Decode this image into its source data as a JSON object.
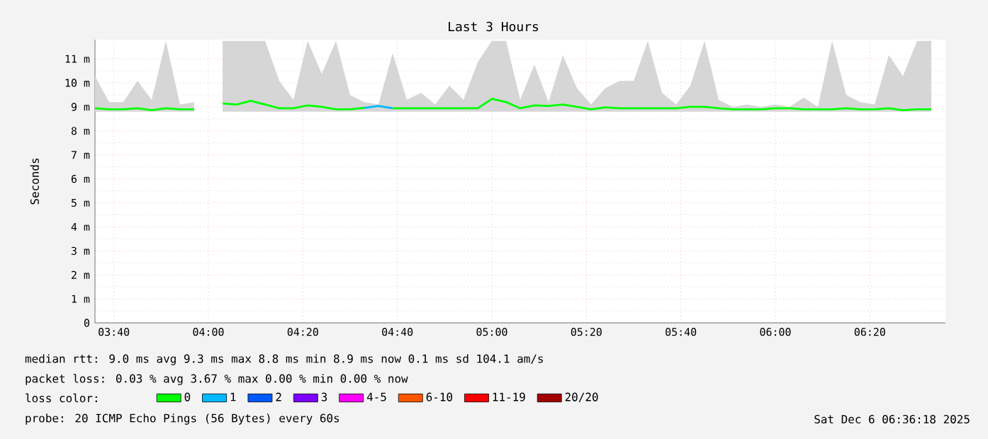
{
  "chart_data": {
    "type": "line",
    "title": "Last 3 Hours",
    "ylabel": "Seconds",
    "x": [
      3.6,
      3.65,
      3.7,
      3.75,
      3.8,
      3.85,
      3.9,
      3.95,
      4.0,
      4.05,
      4.1,
      4.15,
      4.2,
      4.25,
      4.3,
      4.35,
      4.4,
      4.45,
      4.5,
      4.55,
      4.6,
      4.65,
      4.7,
      4.75,
      4.8,
      4.85,
      4.9,
      4.95,
      5.0,
      5.05,
      5.1,
      5.15,
      5.2,
      5.25,
      5.3,
      5.35,
      5.4,
      5.45,
      5.5,
      5.55,
      5.6,
      5.65,
      5.7,
      5.75,
      5.8,
      5.85,
      5.9,
      5.95,
      6.0,
      6.05,
      6.1,
      6.15,
      6.2,
      6.25,
      6.3,
      6.35,
      6.4,
      6.45,
      6.5,
      6.55
    ],
    "series": [
      {
        "name": "0",
        "color": "#00ff00",
        "values": [
          8.94,
          8.9,
          8.9,
          8.94,
          8.86,
          8.94,
          8.9,
          8.9,
          null,
          9.14,
          9.1,
          9.25,
          9.1,
          8.94,
          8.94,
          9.06,
          9.0,
          8.9,
          8.9,
          8.96,
          null,
          8.94,
          8.94,
          8.94,
          8.94,
          8.94,
          8.94,
          8.94,
          9.33,
          9.2,
          8.94,
          9.06,
          9.04,
          9.1,
          9.0,
          8.9,
          8.98,
          8.94,
          8.94,
          8.94,
          8.94,
          8.94,
          9.0,
          9.0,
          8.94,
          8.9,
          8.9,
          8.9,
          8.94,
          8.94,
          8.9,
          8.9,
          8.9,
          8.94,
          8.9,
          8.9,
          8.94,
          8.86,
          8.9,
          8.9
        ],
        "lower": [
          8.8,
          8.8,
          8.8,
          8.8,
          8.8,
          8.8,
          8.8,
          8.8,
          null,
          8.8,
          8.8,
          8.8,
          8.8,
          8.8,
          8.8,
          8.8,
          8.8,
          8.8,
          8.8,
          8.8,
          8.8,
          8.8,
          8.8,
          8.8,
          8.8,
          8.8,
          8.8,
          8.8,
          8.8,
          8.8,
          8.8,
          8.8,
          8.8,
          8.8,
          8.8,
          8.8,
          8.8,
          8.8,
          8.8,
          8.8,
          8.8,
          8.8,
          8.8,
          8.8,
          8.8,
          8.8,
          8.8,
          8.8,
          8.8,
          8.8,
          8.8,
          8.8,
          8.8,
          8.8,
          8.8,
          8.8,
          8.8,
          8.8,
          8.8,
          8.8
        ],
        "upper": [
          10.28,
          9.2,
          9.2,
          10.08,
          9.29,
          11.75,
          9.1,
          9.2,
          null,
          11.75,
          11.75,
          11.75,
          11.75,
          10.08,
          9.29,
          11.75,
          10.37,
          11.75,
          9.49,
          9.2,
          9.1,
          11.25,
          9.29,
          9.59,
          9.1,
          9.88,
          9.29,
          10.86,
          11.75,
          11.75,
          9.29,
          10.76,
          9.2,
          11.16,
          9.78,
          9.1,
          9.78,
          10.08,
          10.08,
          11.75,
          9.59,
          9.1,
          9.88,
          11.75,
          9.29,
          9.0,
          9.1,
          9.0,
          9.1,
          9.0,
          9.39,
          9.0,
          11.75,
          9.49,
          9.2,
          9.1,
          11.16,
          10.28,
          11.75,
          11.75
        ]
      },
      {
        "name": "1",
        "color": "#00b8ff",
        "values": [
          null,
          null,
          null,
          null,
          null,
          null,
          null,
          null,
          null,
          null,
          null,
          null,
          null,
          null,
          null,
          null,
          null,
          null,
          null,
          8.96,
          9.04,
          8.94,
          null,
          null,
          null,
          null,
          null,
          null,
          null,
          null,
          null,
          null,
          null,
          null,
          null,
          null,
          null,
          null,
          null,
          null,
          null,
          null,
          null,
          null,
          null,
          null,
          null,
          null,
          null,
          null,
          null,
          null,
          null,
          null,
          null,
          null,
          null,
          null,
          null,
          null
        ]
      },
      {
        "name": "2",
        "color": "#0059ff",
        "values": [
          null,
          null,
          null,
          null,
          null,
          null,
          null,
          null,
          null,
          null,
          null,
          null,
          null,
          null,
          null,
          null,
          null,
          null,
          null,
          null,
          null,
          null,
          null,
          null,
          null,
          null,
          null,
          null,
          null,
          null,
          null,
          null,
          null,
          null,
          null,
          null,
          null,
          null,
          null,
          null,
          null,
          null,
          null,
          null,
          null,
          null,
          null,
          null,
          null,
          null,
          null,
          null,
          null,
          null,
          null,
          null,
          null,
          null,
          null,
          null
        ]
      },
      {
        "name": "3",
        "color": "#7e00ff",
        "values": [
          null,
          null,
          null,
          null,
          null,
          null,
          null,
          null,
          null,
          null,
          null,
          null,
          null,
          null,
          null,
          null,
          null,
          null,
          null,
          null,
          null,
          null,
          null,
          null,
          null,
          null,
          null,
          null,
          null,
          null,
          null,
          null,
          null,
          null,
          null,
          null,
          null,
          null,
          null,
          null,
          null,
          null,
          null,
          null,
          null,
          null,
          null,
          null,
          null,
          null,
          null,
          null,
          null,
          null,
          null,
          null,
          null,
          null,
          null,
          null
        ]
      },
      {
        "name": "4-5",
        "color": "#ff00ff",
        "values": [
          null,
          null,
          null,
          null,
          null,
          null,
          null,
          null,
          null,
          null,
          null,
          null,
          null,
          null,
          null,
          null,
          null,
          null,
          null,
          null,
          null,
          null,
          null,
          null,
          null,
          null,
          null,
          null,
          null,
          null,
          null,
          null,
          null,
          null,
          null,
          null,
          null,
          null,
          null,
          null,
          null,
          null,
          null,
          null,
          null,
          null,
          null,
          null,
          null,
          null,
          null,
          null,
          null,
          null,
          null,
          null,
          null,
          null,
          null,
          null
        ]
      },
      {
        "name": "6-10",
        "color": "#ff5500",
        "values": [
          null,
          null,
          null,
          null,
          null,
          null,
          null,
          null,
          null,
          null,
          null,
          null,
          null,
          null,
          null,
          null,
          null,
          null,
          null,
          null,
          null,
          null,
          null,
          null,
          null,
          null,
          null,
          null,
          null,
          null,
          null,
          null,
          null,
          null,
          null,
          null,
          null,
          null,
          null,
          null,
          null,
          null,
          null,
          null,
          null,
          null,
          null,
          null,
          null,
          null,
          null,
          null,
          null,
          null,
          null,
          null,
          null,
          null,
          null,
          null
        ]
      },
      {
        "name": "11-19",
        "color": "#ff0000",
        "values": [
          null,
          null,
          null,
          null,
          null,
          null,
          null,
          null,
          null,
          null,
          null,
          null,
          null,
          null,
          null,
          null,
          null,
          null,
          null,
          null,
          null,
          null,
          null,
          null,
          null,
          null,
          null,
          null,
          null,
          null,
          null,
          null,
          null,
          null,
          null,
          null,
          null,
          null,
          null,
          null,
          null,
          null,
          null,
          null,
          null,
          null,
          null,
          null,
          null,
          null,
          null,
          null,
          null,
          null,
          null,
          null,
          null,
          null,
          null,
          null
        ]
      },
      {
        "name": "20/20",
        "color": "#a10000",
        "values": [
          null,
          null,
          null,
          null,
          null,
          null,
          null,
          null,
          null,
          null,
          null,
          null,
          null,
          null,
          null,
          null,
          null,
          null,
          null,
          null,
          null,
          null,
          null,
          null,
          null,
          null,
          null,
          null,
          null,
          null,
          null,
          null,
          null,
          null,
          null,
          null,
          null,
          null,
          null,
          null,
          null,
          null,
          null,
          null,
          null,
          null,
          null,
          null,
          null,
          null,
          null,
          null,
          null,
          null,
          null,
          null,
          null,
          null,
          null,
          null
        ]
      }
    ],
    "xlim": [
      3.6,
      6.6
    ],
    "ylim": [
      0,
      11.8
    ],
    "xticks": [
      {
        "value": 3.666667,
        "label": "03:40"
      },
      {
        "value": 4.0,
        "label": "04:00"
      },
      {
        "value": 4.333333,
        "label": "04:20"
      },
      {
        "value": 4.666667,
        "label": "04:40"
      },
      {
        "value": 5.0,
        "label": "05:00"
      },
      {
        "value": 5.333333,
        "label": "05:20"
      },
      {
        "value": 5.666667,
        "label": "05:40"
      },
      {
        "value": 6.0,
        "label": "06:00"
      },
      {
        "value": 6.333333,
        "label": "06:20"
      }
    ],
    "yticks": [
      0,
      {
        "value": 1,
        "label": "1 m"
      },
      {
        "value": 2,
        "label": "2 m"
      },
      {
        "value": 3,
        "label": "3 m"
      },
      {
        "value": 4,
        "label": "4 m"
      },
      {
        "value": 5,
        "label": "5 m"
      },
      {
        "value": 6,
        "label": "6 m"
      },
      {
        "value": 7,
        "label": "7 m"
      },
      {
        "value": 8,
        "label": "8 m"
      },
      {
        "value": 9,
        "label": "9 m"
      },
      {
        "value": 10,
        "label": "10 m"
      },
      {
        "value": 11,
        "label": "11 m"
      }
    ],
    "grid": true,
    "legend": "bottom",
    "legend_title": "loss color:",
    "annotations": [
      "median rtt:  9.0 ms avg  9.3 ms max  8.8 ms min  8.9 ms now  0.1 ms sd  104.1   am/s",
      "packet loss: 0.03 % avg  3.67 % max  0.00 % min  0.00 % now",
      "probe:       20 ICMP Echo Pings (56 Bytes) every 60s",
      "Sat Dec  6 06:36:18 2025"
    ]
  }
}
